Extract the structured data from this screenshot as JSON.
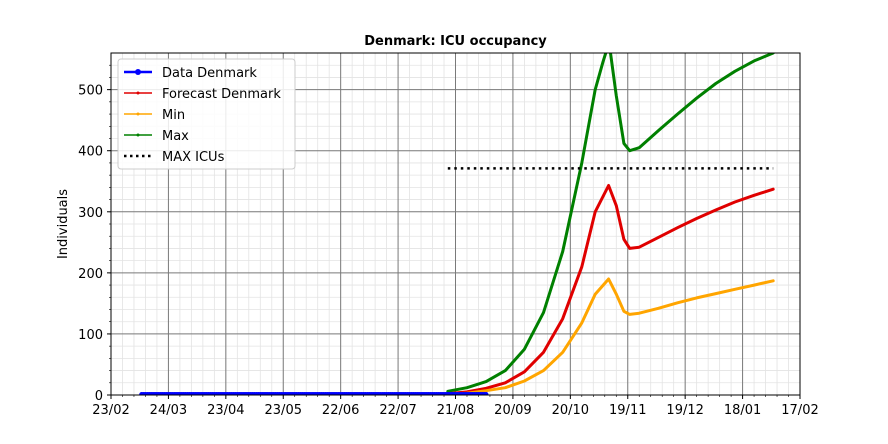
{
  "chart_data": {
    "type": "line",
    "title": "Denmark: ICU occupancy",
    "xlabel": "",
    "ylabel": "Individuals",
    "xlim": [
      "2020-02-23",
      "2021-02-17"
    ],
    "ylim": [
      0,
      560
    ],
    "grid": true,
    "legend_position": "top-left",
    "x_ticks": [
      {
        "date": "2020-02-23",
        "label": "23/02"
      },
      {
        "date": "2020-03-24",
        "label": "24/03"
      },
      {
        "date": "2020-04-23",
        "label": "23/04"
      },
      {
        "date": "2020-05-23",
        "label": "23/05"
      },
      {
        "date": "2020-06-22",
        "label": "22/06"
      },
      {
        "date": "2020-07-22",
        "label": "22/07"
      },
      {
        "date": "2020-08-21",
        "label": "21/08"
      },
      {
        "date": "2020-09-20",
        "label": "20/09"
      },
      {
        "date": "2020-10-20",
        "label": "20/10"
      },
      {
        "date": "2020-11-19",
        "label": "19/11"
      },
      {
        "date": "2020-12-19",
        "label": "19/12"
      },
      {
        "date": "2021-01-18",
        "label": "18/01"
      },
      {
        "date": "2021-02-17",
        "label": "17/02"
      }
    ],
    "y_ticks": [
      0,
      100,
      200,
      300,
      400,
      500
    ],
    "series": [
      {
        "name": "Data Denmark",
        "color": "#0000ff",
        "style": "line-with-dot-markers",
        "x": [
          "2020-03-10",
          "2020-04-01",
          "2020-05-01",
          "2020-06-01",
          "2020-07-01",
          "2020-08-01",
          "2020-09-01",
          "2020-09-06"
        ],
        "y": [
          1,
          1,
          1,
          1,
          1,
          1,
          1,
          1
        ]
      },
      {
        "name": "Forecast Denmark",
        "color": "#e00000",
        "style": "line-with-small-markers",
        "x": [
          "2020-08-17",
          "2020-08-27",
          "2020-09-06",
          "2020-09-16",
          "2020-09-26",
          "2020-10-06",
          "2020-10-16",
          "2020-10-26",
          "2020-11-02",
          "2020-11-09",
          "2020-11-13",
          "2020-11-17",
          "2020-11-20",
          "2020-11-25",
          "2020-12-05",
          "2020-12-15",
          "2020-12-25",
          "2021-01-04",
          "2021-01-14",
          "2021-01-24",
          "2021-02-03"
        ],
        "y": [
          2,
          5,
          11,
          20,
          38,
          70,
          125,
          210,
          300,
          343,
          310,
          255,
          240,
          242,
          258,
          274,
          289,
          303,
          316,
          327,
          337
        ]
      },
      {
        "name": "Min",
        "color": "#ffa500",
        "style": "line-with-small-markers",
        "x": [
          "2020-08-17",
          "2020-08-27",
          "2020-09-06",
          "2020-09-16",
          "2020-09-26",
          "2020-10-06",
          "2020-10-16",
          "2020-10-26",
          "2020-11-02",
          "2020-11-09",
          "2020-11-13",
          "2020-11-17",
          "2020-11-20",
          "2020-11-25",
          "2020-12-05",
          "2020-12-15",
          "2020-12-25",
          "2021-01-04",
          "2021-01-14",
          "2021-01-24",
          "2021-02-03"
        ],
        "y": [
          1,
          3,
          7,
          12,
          23,
          40,
          70,
          118,
          165,
          190,
          165,
          137,
          132,
          134,
          142,
          151,
          159,
          166,
          173,
          180,
          187
        ]
      },
      {
        "name": "Max",
        "color": "#008000",
        "style": "line-with-small-markers",
        "x": [
          "2020-08-17",
          "2020-08-27",
          "2020-09-06",
          "2020-09-16",
          "2020-09-26",
          "2020-10-06",
          "2020-10-16",
          "2020-10-26",
          "2020-11-02",
          "2020-11-06",
          "2020-11-09",
          "2020-11-10",
          "2020-11-13",
          "2020-11-17",
          "2020-11-20",
          "2020-11-25",
          "2020-12-05",
          "2020-12-15",
          "2020-12-25",
          "2021-01-04",
          "2021-01-14",
          "2021-01-24",
          "2021-02-03"
        ],
        "y": [
          6,
          12,
          22,
          40,
          75,
          135,
          235,
          380,
          500,
          545,
          575,
          560,
          490,
          412,
          400,
          405,
          433,
          460,
          486,
          510,
          530,
          547,
          560
        ]
      },
      {
        "name": "MAX ICUs",
        "color": "#000000",
        "style": "dotted",
        "x": [
          "2020-08-17",
          "2021-02-03"
        ],
        "y": [
          371,
          371
        ]
      }
    ]
  }
}
